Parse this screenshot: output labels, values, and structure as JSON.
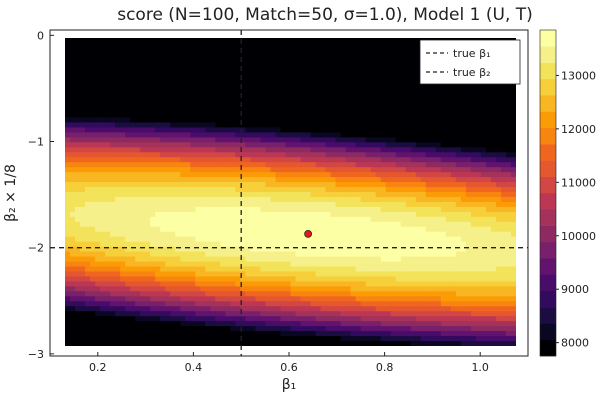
{
  "chart_data": {
    "type": "heatmap",
    "title": "score (N=100, Match=50, σ=1.0), Model 1 (U, T)",
    "xlabel": "β₁",
    "ylabel": "β₂ × 1/8",
    "xlim": [
      0.1,
      1.1
    ],
    "ylim": [
      -3.02,
      0.05
    ],
    "x_ticks": [
      0.2,
      0.4,
      0.6,
      0.8,
      1.0
    ],
    "x_tick_labels": [
      "0.2",
      "0.4",
      "0.6",
      "0.8",
      "1.0"
    ],
    "y_ticks": [
      0,
      -1,
      -2,
      -3
    ],
    "y_tick_labels": [
      "0",
      "−1",
      "−2",
      "−3"
    ],
    "colorbar": {
      "range": [
        7750,
        13850
      ],
      "ticks": [
        8000,
        9000,
        10000,
        11000,
        12000,
        13000
      ],
      "tick_labels": [
        "8000",
        "9000",
        "10000",
        "11000",
        "12000",
        "13000"
      ],
      "colors": [
        "#000004",
        "#0a0722",
        "#1b0c41",
        "#320a5e",
        "#4a0c6b",
        "#61136e",
        "#78206c",
        "#8e2a62",
        "#a5325a",
        "#bc3754",
        "#d24644",
        "#e4572f",
        "#f0661f",
        "#f8850f",
        "#fb9b06",
        "#f8b622",
        "#f6cf3a",
        "#f3e35a",
        "#f6f08a",
        "#fcffa4"
      ]
    },
    "contour_model": {
      "center": [
        0.64,
        -1.87
      ],
      "peak": 13800,
      "dir": [
        0.88,
        -0.475
      ],
      "a": 1.9,
      "b": 7.5,
      "vertical_slope": 1300
    },
    "markers": [
      {
        "type": "point",
        "x": 0.64,
        "y": -1.87,
        "color": "#e8191a"
      }
    ],
    "reference_lines": [
      {
        "orientation": "vertical",
        "value": 0.5,
        "name": "true β₁",
        "style": "dashed"
      },
      {
        "orientation": "horizontal",
        "value": -2,
        "name": "true β₂",
        "style": "dashed"
      }
    ],
    "legend": {
      "position": "top-right",
      "entries": [
        "true β₁",
        "true β₂"
      ]
    },
    "grid": false
  }
}
